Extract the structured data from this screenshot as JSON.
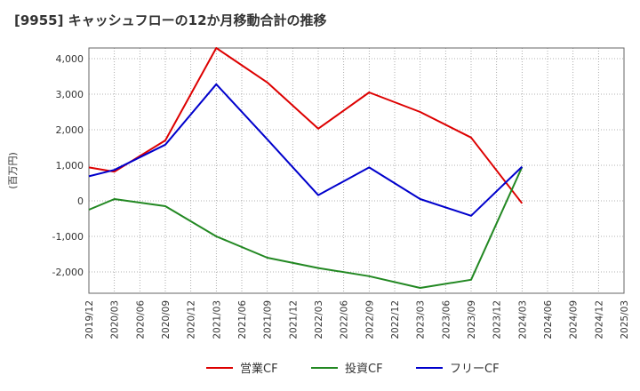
{
  "chart_data": {
    "type": "line",
    "title": "[9955]  キャッシュフローの12か月移動合計の推移",
    "ylabel": "(百万円)",
    "xlabel": "",
    "ylim": [
      -2600,
      4300
    ],
    "yticks": [
      -2000,
      -1000,
      0,
      1000,
      2000,
      3000,
      4000
    ],
    "ytick_labels": [
      "-2,000",
      "-1,000",
      "0",
      "1,000",
      "2,000",
      "3,000",
      "4,000"
    ],
    "x": [
      "2019/12",
      "2020/03",
      "2020/06",
      "2020/09",
      "2020/12",
      "2021/03",
      "2021/06",
      "2021/09",
      "2021/12",
      "2022/03",
      "2022/06",
      "2022/09",
      "2022/12",
      "2023/03",
      "2023/06",
      "2023/09",
      "2023/12",
      "2024/03",
      "2024/06",
      "2024/09",
      "2024/12",
      "2025/03"
    ],
    "grid": true,
    "legend_position": "bottom",
    "series": [
      {
        "name": "営業CF",
        "color": "#dd0000",
        "x": [
          "2019/12",
          "2020/03",
          "2020/09",
          "2021/03",
          "2021/09",
          "2022/03",
          "2022/09",
          "2023/03",
          "2023/09",
          "2024/03"
        ],
        "values": [
          940,
          820,
          1700,
          4300,
          3330,
          2030,
          3050,
          2500,
          1780,
          -70
        ]
      },
      {
        "name": "投資CF",
        "color": "#228822",
        "x": [
          "2019/12",
          "2020/03",
          "2020/09",
          "2021/03",
          "2021/09",
          "2022/03",
          "2022/09",
          "2023/03",
          "2023/09",
          "2024/03"
        ],
        "values": [
          -250,
          50,
          -150,
          -1000,
          -1600,
          -1890,
          -2120,
          -2450,
          -2220,
          950
        ]
      },
      {
        "name": "フリーCF",
        "color": "#0000cc",
        "x": [
          "2019/12",
          "2020/03",
          "2020/09",
          "2021/03",
          "2021/09",
          "2022/03",
          "2022/09",
          "2023/03",
          "2023/09",
          "2024/03"
        ],
        "values": [
          690,
          870,
          1580,
          3280,
          1730,
          160,
          940,
          50,
          -420,
          960
        ]
      }
    ]
  }
}
